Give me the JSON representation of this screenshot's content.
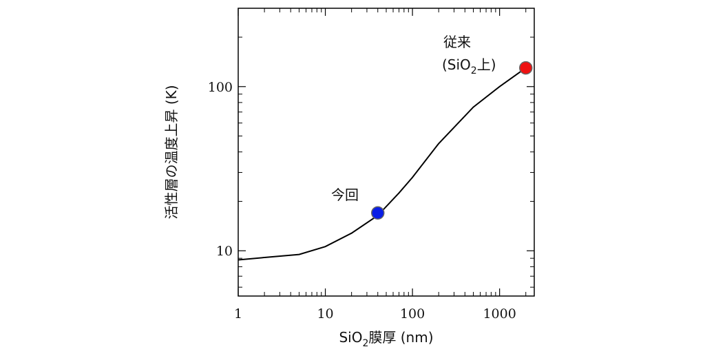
{
  "chart_data": {
    "type": "line",
    "x_scale": "log",
    "y_scale": "log",
    "xlim": [
      1,
      2500
    ],
    "ylim": [
      5.3,
      300
    ],
    "grid": false,
    "xlabel": {
      "main": "SiO",
      "sub": "2",
      "rest": "膜厚 (nm)"
    },
    "ylabel": "活性層の温度上昇 (K)",
    "x_ticks": [
      {
        "value": 1,
        "label": "1"
      },
      {
        "value": 10,
        "label": "10"
      },
      {
        "value": 100,
        "label": "100"
      },
      {
        "value": 1000,
        "label": "1000"
      }
    ],
    "y_ticks": [
      {
        "value": 10,
        "label": "10"
      },
      {
        "value": 100,
        "label": "100"
      }
    ],
    "series": [
      {
        "color": "#000000",
        "x": [
          1,
          2,
          5,
          10,
          20,
          40,
          70,
          100,
          200,
          500,
          1000,
          2000
        ],
        "y": [
          8.8,
          9.1,
          9.5,
          10.6,
          12.8,
          16.4,
          22.5,
          28,
          45,
          75,
          100,
          130
        ]
      }
    ],
    "markers": [
      {
        "x": 40,
        "y": 17,
        "color": "#0a1ee6",
        "label": "今回"
      },
      {
        "x": 2000,
        "y": 130,
        "color": "#ee1111",
        "label_line1": "従来",
        "label_line2_pre": "(SiO",
        "label_line2_sub": "2",
        "label_line2_post": "上)"
      }
    ]
  }
}
